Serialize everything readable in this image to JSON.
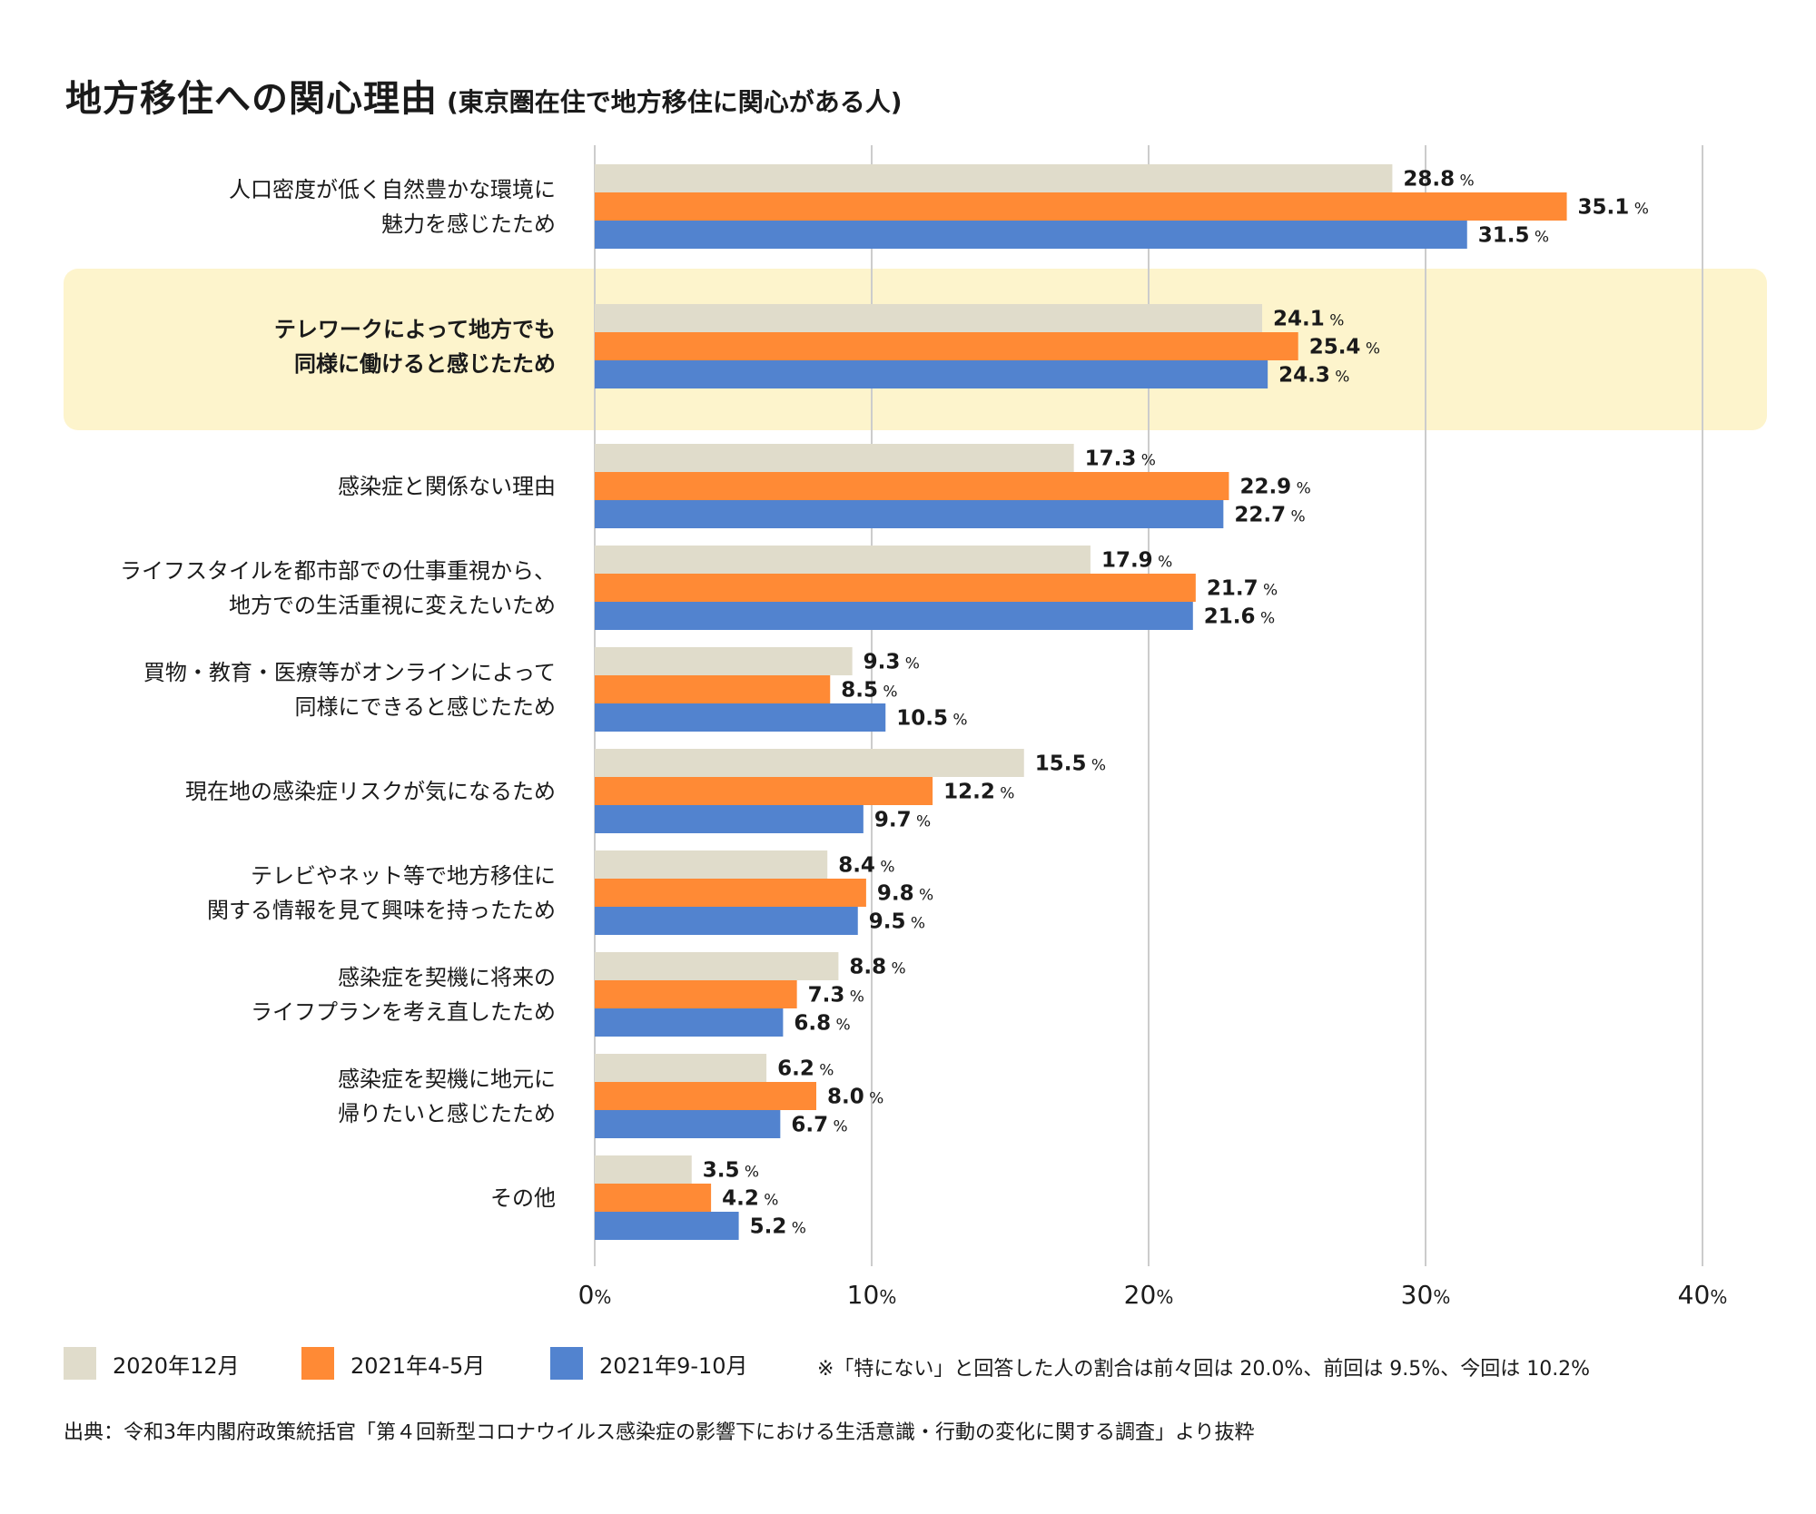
{
  "title": "地方移住への関心理由",
  "subtitle": "(東京圏在住で地方移住に関心がある人)",
  "note": "※「特にない」と回答した人の割合は前々回は 20.0%、前回は 9.5%、今回は 10.2%",
  "source": "出典：令和3年内閣府政策統括官「第４回新型コロナウイルス感染症の影響下における生活意識・行動の変化に関する調査」より抜粋",
  "colors": {
    "series_2020_12": "#e0dccb",
    "series_2021_4_5": "#ff8a35",
    "series_2021_9_10": "#5283cf",
    "highlight": "#fdf4cc",
    "grid": "#cccccc"
  },
  "chart_data": {
    "type": "bar",
    "orientation": "horizontal",
    "categories": [
      "人口密度が低く自然豊かな環境に\n魅力を感じたため",
      "テレワークによって地方でも\n同様に働けると感じたため",
      "感染症と関係ない理由",
      "ライフスタイルを都市部での仕事重視から、\n地方での生活重視に変えたいため",
      "買物・教育・医療等がオンラインによって\n同様にできると感じたため",
      "現在地の感染症リスクが気になるため",
      "テレビやネット等で地方移住に\n関する情報を見て興味を持ったため",
      "感染症を契機に将来の\nライフプランを考え直したため",
      "感染症を契機に地元に\n帰りたいと感じたため",
      "その他"
    ],
    "highlighted_category_index": 1,
    "series": [
      {
        "name": "2020年12月",
        "values": [
          28.8,
          24.1,
          17.3,
          17.9,
          9.3,
          15.5,
          8.4,
          8.8,
          6.2,
          3.5
        ]
      },
      {
        "name": "2021年4-5月",
        "values": [
          35.1,
          25.4,
          22.9,
          21.7,
          8.5,
          12.2,
          9.8,
          7.3,
          8.0,
          4.2
        ]
      },
      {
        "name": "2021年9-10月",
        "values": [
          31.5,
          24.3,
          22.7,
          21.6,
          10.5,
          9.7,
          9.5,
          6.8,
          6.7,
          5.2
        ]
      }
    ],
    "value_suffix": "%",
    "xlim": [
      0,
      40
    ],
    "xticks": [
      "0%",
      "10%",
      "20%",
      "30%",
      "40%"
    ],
    "grid": true,
    "legend_position": "bottom"
  }
}
